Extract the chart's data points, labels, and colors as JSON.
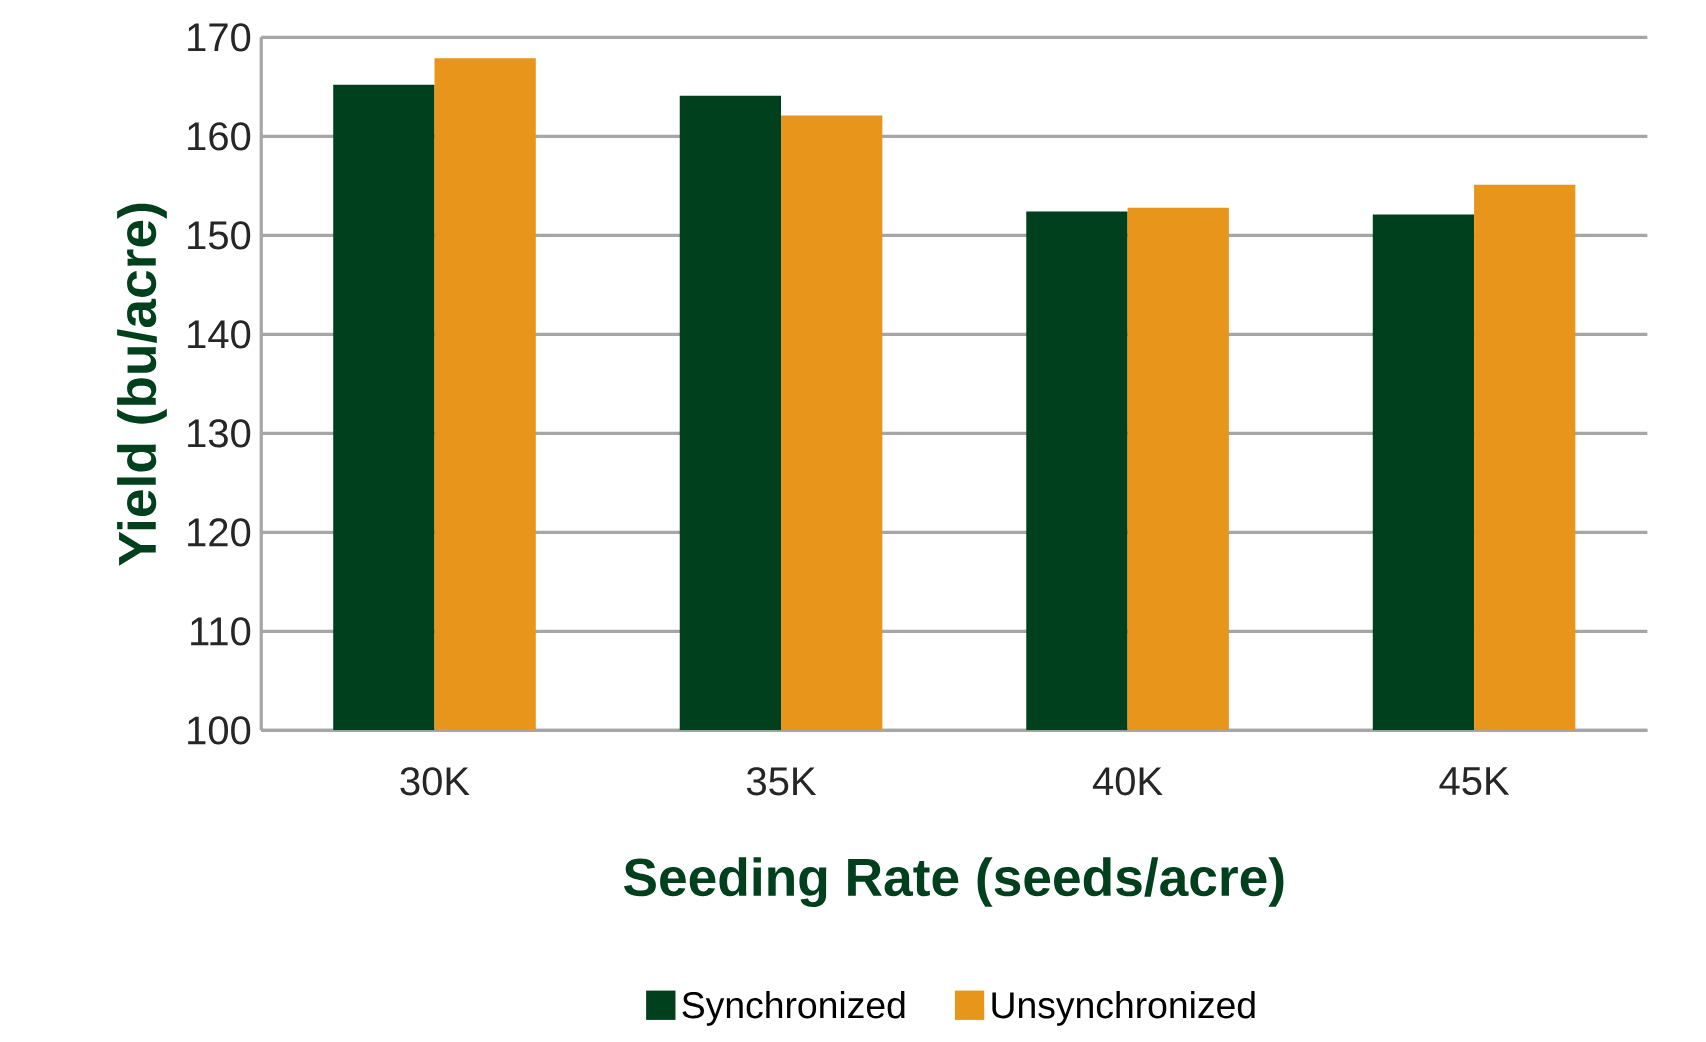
{
  "chart_data": {
    "type": "bar",
    "xlabel": "Seeding Rate (seeds/acre)",
    "ylabel": "Yield (bu/acre)",
    "categories": [
      "30K",
      "35K",
      "40K",
      "45K"
    ],
    "series": [
      {
        "name": "Synchronized",
        "color": "#00401c",
        "values": [
          165.2,
          164.1,
          152.4,
          152.1
        ]
      },
      {
        "name": "Unsynchronized",
        "color": "#e8951c",
        "values": [
          167.9,
          162.1,
          152.8,
          155.1
        ]
      }
    ],
    "ylim": [
      100,
      170
    ],
    "yticks": [
      100,
      110,
      120,
      130,
      140,
      150,
      160,
      170
    ],
    "grid": "y",
    "legend": "bottom"
  }
}
